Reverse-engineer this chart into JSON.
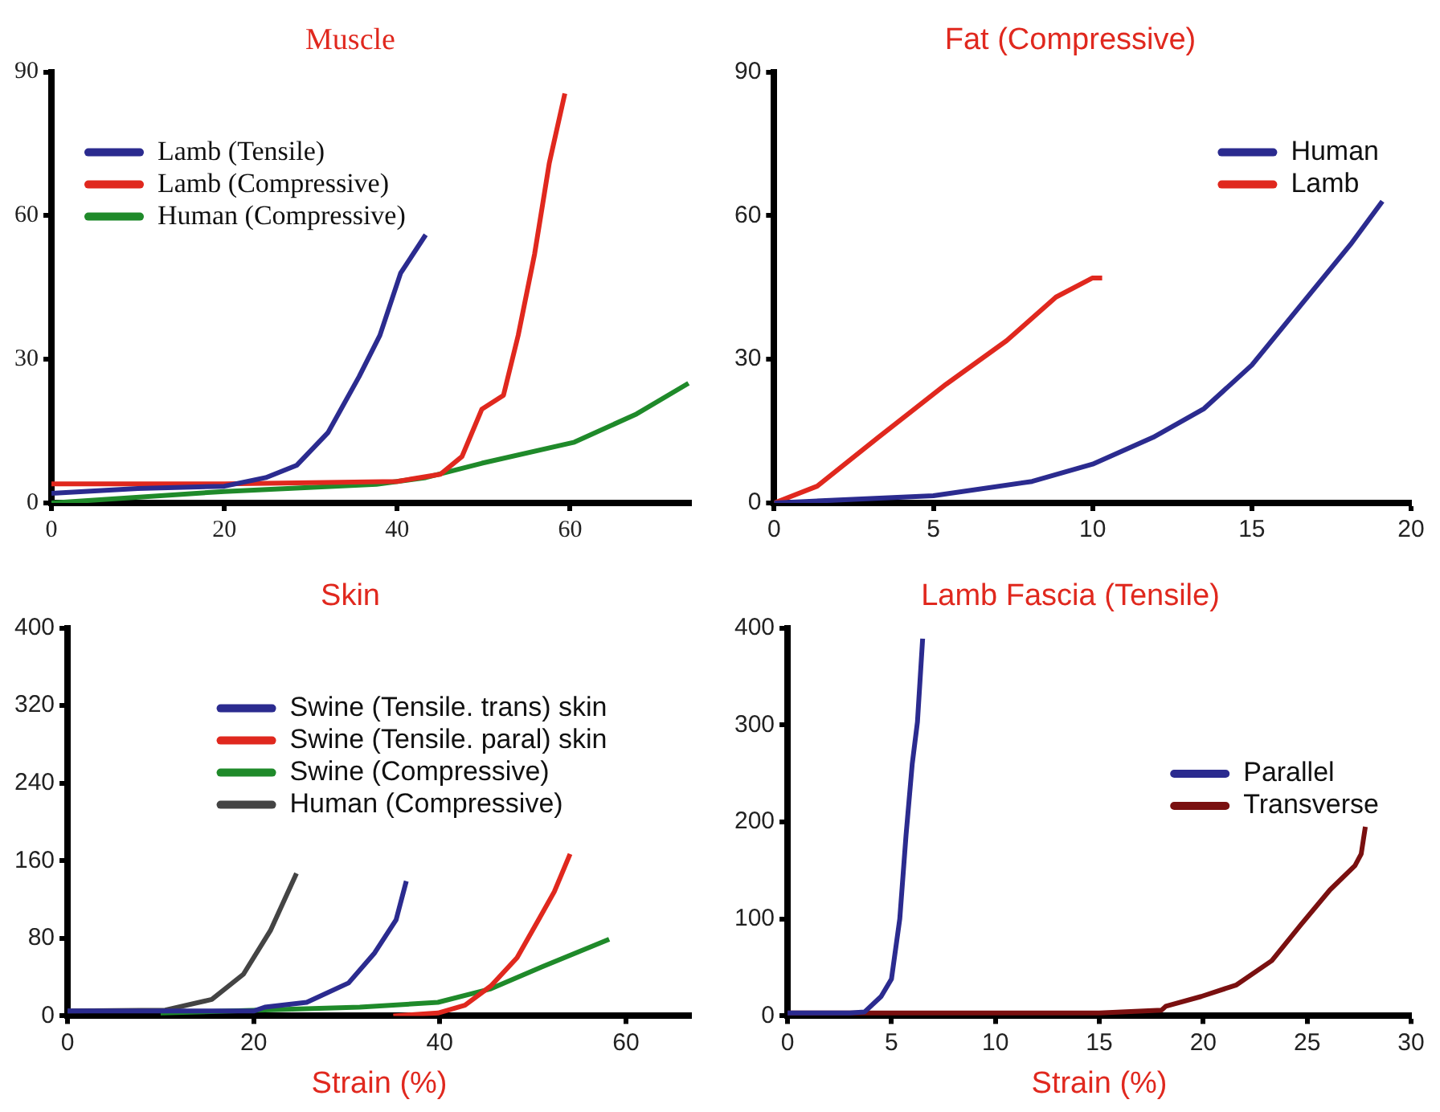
{
  "chart_data": [
    {
      "type": "line",
      "title": "Muscle",
      "xlim": [
        0,
        74
      ],
      "xticks": [
        0,
        20,
        40,
        60
      ],
      "ylim": [
        0,
        90
      ],
      "yticks": [
        0,
        30,
        60,
        90
      ],
      "grid": false,
      "legend": "top left",
      "series": [
        {
          "name": "Lamb (Tensile)",
          "color": "#2b2b8f",
          "x": [
            0,
            10,
            20,
            24.8,
            28.4,
            32,
            35.6,
            38,
            40.4,
            43.3
          ],
          "values": [
            2,
            3,
            3.5,
            5.3,
            7.9,
            14.7,
            26.4,
            35,
            48,
            56
          ]
        },
        {
          "name": "Lamb (Compressive)",
          "color": "#e0281e",
          "x": [
            0,
            20,
            40,
            45,
            47.5,
            49.8,
            52.3,
            54,
            55.9,
            57.6,
            59.4
          ],
          "values": [
            4,
            4,
            4.5,
            6,
            9.7,
            19.6,
            22.5,
            35,
            52,
            71,
            85.5
          ]
        },
        {
          "name": "Human (Compressive)",
          "color": "#1f8a2a",
          "x": [
            0,
            20,
            37.6,
            43.3,
            49.8,
            60.5,
            67.7,
            73.7
          ],
          "values": [
            0,
            2.4,
            3.9,
            5.3,
            8.3,
            12.7,
            18.6,
            25
          ]
        }
      ]
    },
    {
      "type": "line",
      "title": "Fat (Compressive)",
      "xlim": [
        0,
        20
      ],
      "xticks": [
        0,
        5,
        10,
        15,
        20
      ],
      "ylim": [
        0,
        90
      ],
      "yticks": [
        0,
        30,
        60,
        90
      ],
      "grid": false,
      "legend": "top right",
      "series": [
        {
          "name": "Human",
          "color": "#2b2b8f",
          "x": [
            0,
            5,
            8.1,
            10,
            11.9,
            13.5,
            15,
            16.5,
            18.1,
            19.1
          ],
          "values": [
            0,
            1.5,
            4.5,
            8.1,
            13.7,
            19.7,
            28.8,
            41,
            54,
            63
          ]
        },
        {
          "name": "Lamb",
          "color": "#e0281e",
          "x": [
            0,
            1.35,
            3.27,
            5.4,
            7.3,
            8.85,
            10,
            10.3
          ],
          "values": [
            0,
            3.5,
            13.7,
            24.8,
            33.9,
            43,
            47,
            47
          ]
        }
      ]
    },
    {
      "type": "line",
      "title": "Skin",
      "xlabel": "Strain (%)",
      "xlim": [
        0,
        67
      ],
      "xticks": [
        0,
        20,
        40,
        60
      ],
      "ylim": [
        0,
        400
      ],
      "yticks": [
        0,
        80,
        160,
        240,
        320,
        400
      ],
      "grid": false,
      "legend": "top",
      "series": [
        {
          "name": "Swine (Tensile. trans) skin",
          "color": "#2b2b8f",
          "x": [
            0,
            20,
            21.2,
            25.7,
            30.2,
            33,
            35.3,
            36.4
          ],
          "values": [
            5,
            5,
            9,
            14,
            34,
            65,
            99,
            139
          ]
        },
        {
          "name": "Swine (Tensile. paral) skin",
          "color": "#e0281e",
          "x": [
            35,
            39.8,
            42.7,
            45.5,
            48.3,
            50.6,
            52.3,
            54
          ],
          "values": [
            0,
            3,
            11,
            31,
            60,
            99,
            128,
            167
          ]
        },
        {
          "name": "Swine (Compressive)",
          "color": "#1f8a2a",
          "x": [
            10,
            31.4,
            39.8,
            45.5,
            51.1,
            58.2
          ],
          "values": [
            3,
            9,
            14,
            28,
            51,
            79
          ]
        },
        {
          "name": "Human (Compressive)",
          "color": "#444444",
          "x": [
            0,
            10.5,
            15.5,
            18.9,
            21.8,
            24.6
          ],
          "values": [
            5,
            6,
            17,
            43,
            88,
            147
          ]
        }
      ]
    },
    {
      "type": "line",
      "title": "Lamb Fascia (Tensile)",
      "xlabel": "Strain (%)",
      "xlim": [
        0,
        30
      ],
      "xticks": [
        0,
        5,
        10,
        15,
        20,
        25,
        30
      ],
      "ylim": [
        0,
        400
      ],
      "yticks": [
        0,
        100,
        200,
        300,
        400
      ],
      "grid": false,
      "legend": "right",
      "series": [
        {
          "name": "Parallel",
          "color": "#2b2b8f",
          "x": [
            0,
            3,
            3.7,
            4.5,
            5,
            5.4,
            5.7,
            6,
            6.25,
            6.5
          ],
          "values": [
            3,
            3,
            4,
            20,
            38,
            100,
            186,
            260,
            303,
            389
          ]
        },
        {
          "name": "Transverse",
          "color": "#7a1010",
          "x": [
            0,
            15,
            18,
            18.2,
            19.9,
            21.6,
            23.3,
            24.7,
            26.1,
            27.3,
            27.6,
            27.8
          ],
          "values": [
            3,
            3,
            6,
            10,
            20,
            32,
            57,
            94,
            130,
            155,
            167,
            195
          ]
        }
      ]
    }
  ]
}
